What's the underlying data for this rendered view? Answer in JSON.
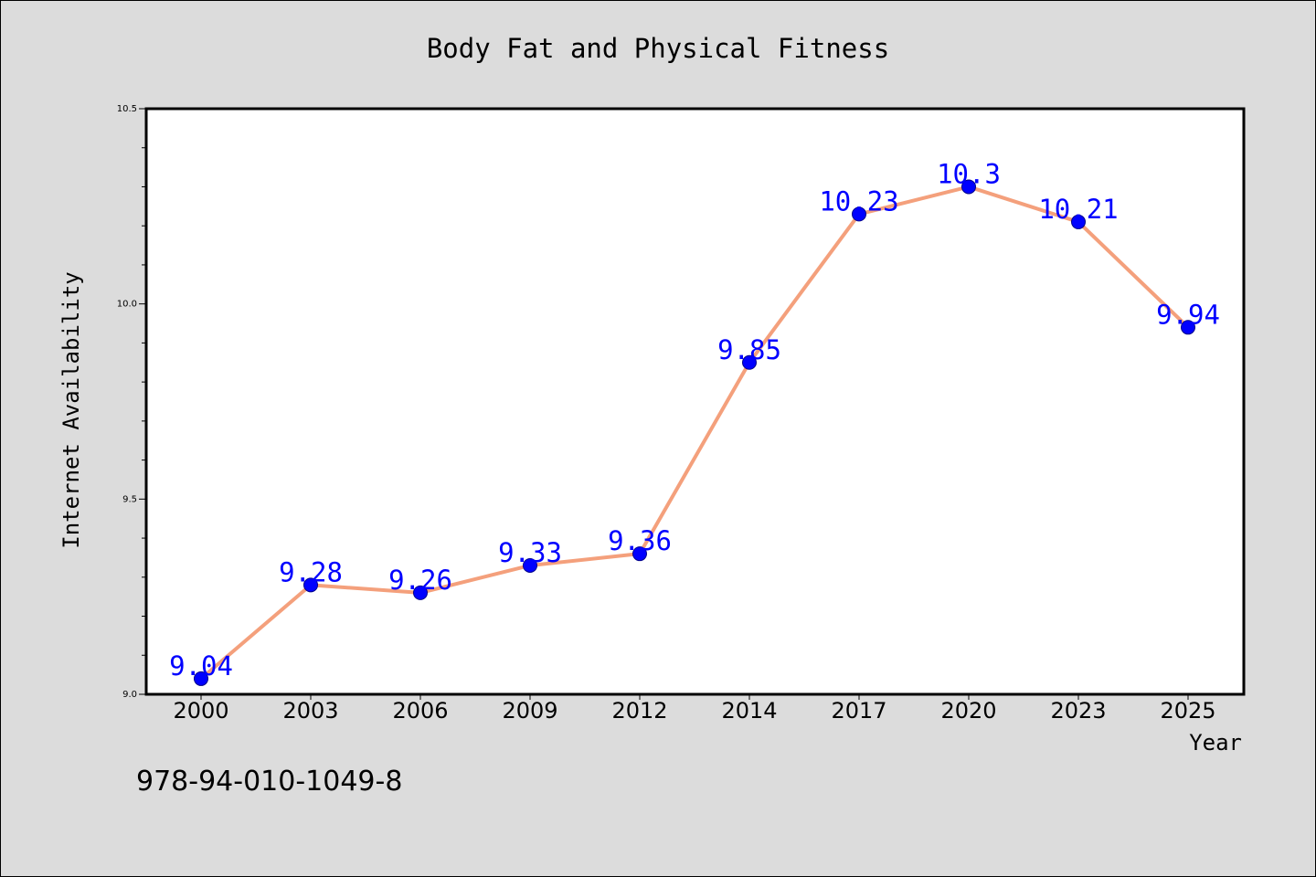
{
  "chart_data": {
    "type": "line",
    "title": "Body Fat and Physical Fitness",
    "xlabel": "Year",
    "ylabel": "Internet Availability",
    "categories": [
      "2000",
      "2003",
      "2006",
      "2009",
      "2012",
      "2014",
      "2017",
      "2020",
      "2023",
      "2025"
    ],
    "series": [
      {
        "values": [
          9.04,
          9.28,
          9.26,
          9.33,
          9.36,
          9.85,
          10.23,
          10.3,
          10.21,
          9.94
        ],
        "data_labels": [
          "9.04",
          "9.28",
          "9.26",
          "9.33",
          "9.36",
          "9.85",
          "10.23",
          "10.3",
          "10.21",
          "9.94"
        ],
        "line_color": "#f4a07c",
        "marker_color": "#0000ff",
        "label_color": "#0000ff"
      }
    ],
    "ylim": [
      9.0,
      10.5
    ],
    "yticks": [
      9.0,
      9.5,
      10.0,
      10.5
    ],
    "ytick_labels": [
      "9.0",
      "9.5",
      "10.0",
      "10.5"
    ],
    "grid": false,
    "legend": "none"
  },
  "footer": {
    "isbn": "978-94-010-1049-8"
  },
  "colors": {
    "page_background": "#dcdcdc",
    "plot_background": "#ffffff",
    "text": "#000000"
  }
}
